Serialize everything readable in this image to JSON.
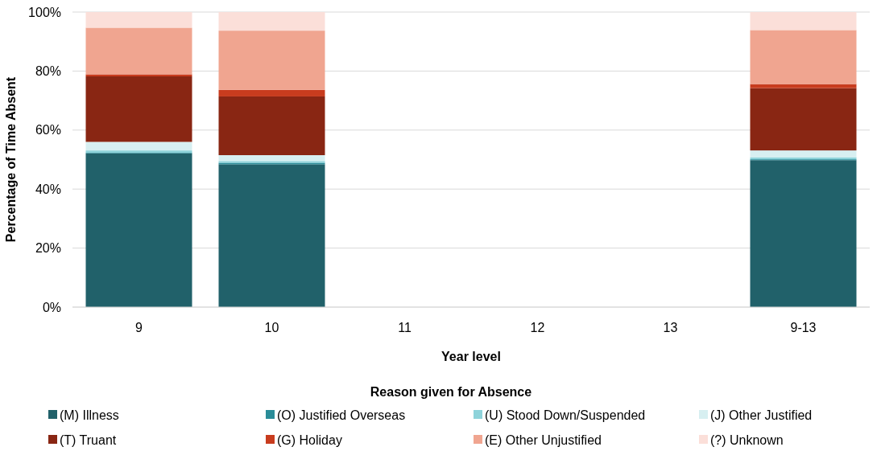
{
  "chart_data": {
    "type": "bar",
    "stacked": true,
    "xlabel": "Year level",
    "ylabel": "Percentage of Time Absent",
    "legend_title": "Reason given for Absence",
    "legend": "bottom",
    "grid": "y",
    "categories": [
      "9",
      "10",
      "11",
      "12",
      "13",
      "9-13"
    ],
    "ylim": [
      0,
      100
    ],
    "yticks": [
      {
        "value": 0,
        "label": "0%"
      },
      {
        "value": 20,
        "label": "20%"
      },
      {
        "value": 40,
        "label": "40%"
      },
      {
        "value": 60,
        "label": "60%"
      },
      {
        "value": 80,
        "label": "80%"
      },
      {
        "value": 100,
        "label": "100%"
      }
    ],
    "series": [
      {
        "name": "(M) Illness",
        "color": "#21616a",
        "values": [
          52.1,
          48.4,
          null,
          null,
          null,
          49.8
        ]
      },
      {
        "name": "(O) Justified Overseas",
        "color": "#2a8c98",
        "values": [
          0.2,
          0.5,
          null,
          null,
          null,
          0.3
        ]
      },
      {
        "name": "(U) Stood Down/Suspended",
        "color": "#8ed3da",
        "values": [
          0.8,
          0.6,
          null,
          null,
          null,
          0.7
        ]
      },
      {
        "name": "(J) Other Justified",
        "color": "#d7eff1",
        "values": [
          2.9,
          2.0,
          null,
          null,
          null,
          2.3
        ]
      },
      {
        "name": "(T) Truant",
        "color": "#892613",
        "values": [
          22.2,
          19.9,
          null,
          null,
          null,
          21.1
        ]
      },
      {
        "name": "(G) Holiday",
        "color": "#c83c1e",
        "values": [
          0.7,
          2.2,
          null,
          null,
          null,
          1.4
        ]
      },
      {
        "name": "(E) Other Unjustified",
        "color": "#f0a590",
        "values": [
          15.8,
          20.1,
          null,
          null,
          null,
          18.3
        ]
      },
      {
        "name": "(?) Unknown",
        "color": "#fbdfd9",
        "values": [
          5.3,
          6.3,
          null,
          null,
          null,
          6.1
        ]
      }
    ]
  }
}
